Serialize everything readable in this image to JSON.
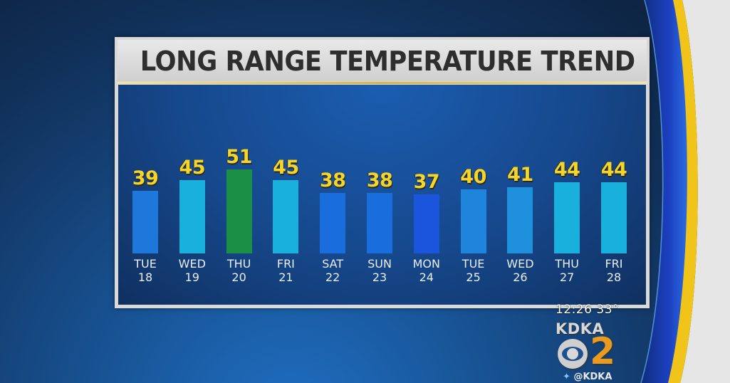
{
  "title": "LONG RANGE TEMPERATURE TREND",
  "chart_data": {
    "type": "bar",
    "title": "LONG RANGE TEMPERATURE TREND",
    "xlabel": "",
    "ylabel": "",
    "grid": false,
    "legend": null,
    "categories": [
      "TUE 18",
      "WED 19",
      "THU 20",
      "FRI 21",
      "SAT 22",
      "SUN 23",
      "MON 24",
      "TUE 25",
      "WED 26",
      "THU 27",
      "FRI 28"
    ],
    "values": [
      39,
      45,
      51,
      45,
      38,
      38,
      37,
      40,
      41,
      44,
      44
    ],
    "bar_colors": [
      "#1e78dc",
      "#1ab0dc",
      "#1a8f45",
      "#1ab0dc",
      "#1a6ddc",
      "#1a6ddc",
      "#1a55dc",
      "#1e84dc",
      "#1e90dc",
      "#1ab0dc",
      "#1ab0dc"
    ]
  },
  "days": [
    {
      "day": "TUE",
      "date": "18",
      "temp": "39"
    },
    {
      "day": "WED",
      "date": "19",
      "temp": "45"
    },
    {
      "day": "THU",
      "date": "20",
      "temp": "51"
    },
    {
      "day": "FRI",
      "date": "21",
      "temp": "45"
    },
    {
      "day": "SAT",
      "date": "22",
      "temp": "38"
    },
    {
      "day": "SUN",
      "date": "23",
      "temp": "38"
    },
    {
      "day": "MON",
      "date": "24",
      "temp": "37"
    },
    {
      "day": "TUE",
      "date": "25",
      "temp": "40"
    },
    {
      "day": "WED",
      "date": "26",
      "temp": "41"
    },
    {
      "day": "THU",
      "date": "27",
      "temp": "44"
    },
    {
      "day": "FRI",
      "date": "28",
      "temp": "44"
    }
  ],
  "bug": {
    "time": "12:26",
    "temp": "33°",
    "station": "KDKA",
    "channel": "2",
    "social_icon": "twitter-icon",
    "handle": "@KDKA"
  },
  "colors": {
    "value_text": "#f4d62a",
    "label_text": "#e8eef6",
    "accent_gold": "#d9b640",
    "channel_orange": "#e89b1e"
  }
}
